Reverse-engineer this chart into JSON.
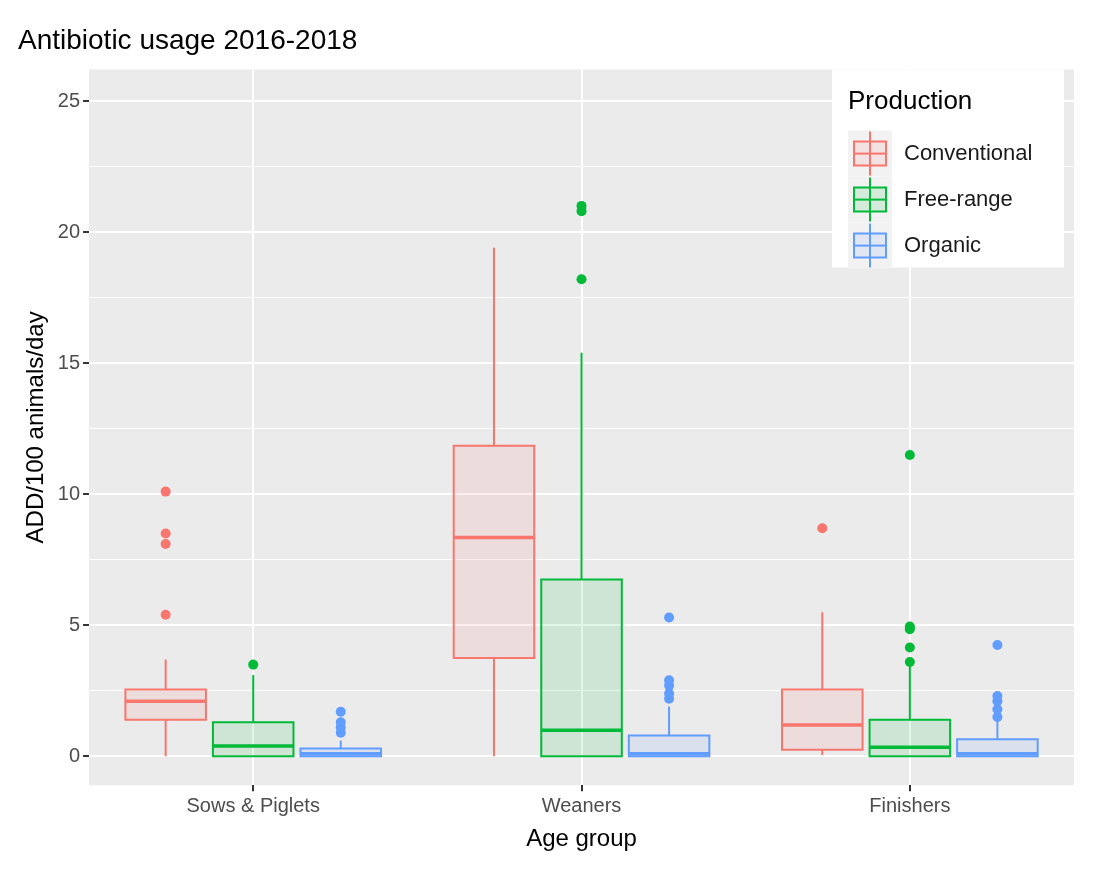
{
  "chart_data": {
    "type": "box",
    "title": "Antibiotic usage 2016-2018",
    "xlabel": "Age group",
    "ylabel": "ADD/100 animals/day",
    "legend_title": "Production",
    "legend": "top right",
    "grid": true,
    "categories": [
      "Sows & Piglets",
      "Weaners",
      "Finishers"
    ],
    "ylim": [
      -1.1,
      26.2
    ],
    "yticks": [
      0,
      {
        "value": 2.5,
        "label": null
      },
      5,
      {
        "value": 7.5,
        "label": null
      },
      10,
      {
        "value": 12.5,
        "label": null
      },
      15,
      {
        "value": 17.5,
        "label": null
      },
      20,
      {
        "value": 22.5,
        "label": null
      },
      25
    ],
    "series": [
      {
        "name": "Conventional",
        "color": "#f8766d",
        "boxes": [
          {
            "low": 0,
            "q1": 1.4,
            "median": 2.1,
            "q3": 2.55,
            "high": 3.7,
            "outliers": [
              5.4,
              8.1,
              8.5,
              10.1
            ]
          },
          {
            "low": 0,
            "q1": 3.75,
            "median": 8.35,
            "q3": 11.85,
            "high": 19.4
          },
          {
            "low": 0.05,
            "q1": 0.25,
            "median": 1.2,
            "q3": 2.55,
            "high": 5.5,
            "outliers": [
              8.7
            ]
          }
        ]
      },
      {
        "name": "Free-range",
        "color": "#00ba38",
        "boxes": [
          {
            "low": 0,
            "q1": 0,
            "median": 0.4,
            "q3": 1.3,
            "high": 3.1,
            "outliers": [
              3.5
            ]
          },
          {
            "low": 0,
            "q1": 0,
            "median": 1.0,
            "q3": 6.75,
            "high": 15.4,
            "outliers": [
              18.2,
              20.8,
              21.0
            ]
          },
          {
            "low": 0,
            "q1": 0,
            "median": 0.35,
            "q3": 1.4,
            "high": 3.5,
            "outliers": [
              3.6,
              4.15,
              4.85,
              4.95,
              11.5
            ]
          }
        ]
      },
      {
        "name": "Organic",
        "color": "#619cff",
        "boxes": [
          {
            "low": 0,
            "q1": 0,
            "median": 0.1,
            "q3": 0.3,
            "high": 0.6,
            "outliers": [
              0.9,
              1.1,
              1.3,
              1.7
            ]
          },
          {
            "low": 0,
            "q1": 0,
            "median": 0.1,
            "q3": 0.8,
            "high": 1.9,
            "outliers": [
              2.2,
              2.4,
              2.7,
              2.9,
              5.3
            ]
          },
          {
            "low": 0,
            "q1": 0,
            "median": 0.1,
            "q3": 0.65,
            "high": 1.4,
            "outliers": [
              1.5,
              1.8,
              2.1,
              2.3,
              4.25
            ]
          }
        ]
      }
    ]
  }
}
